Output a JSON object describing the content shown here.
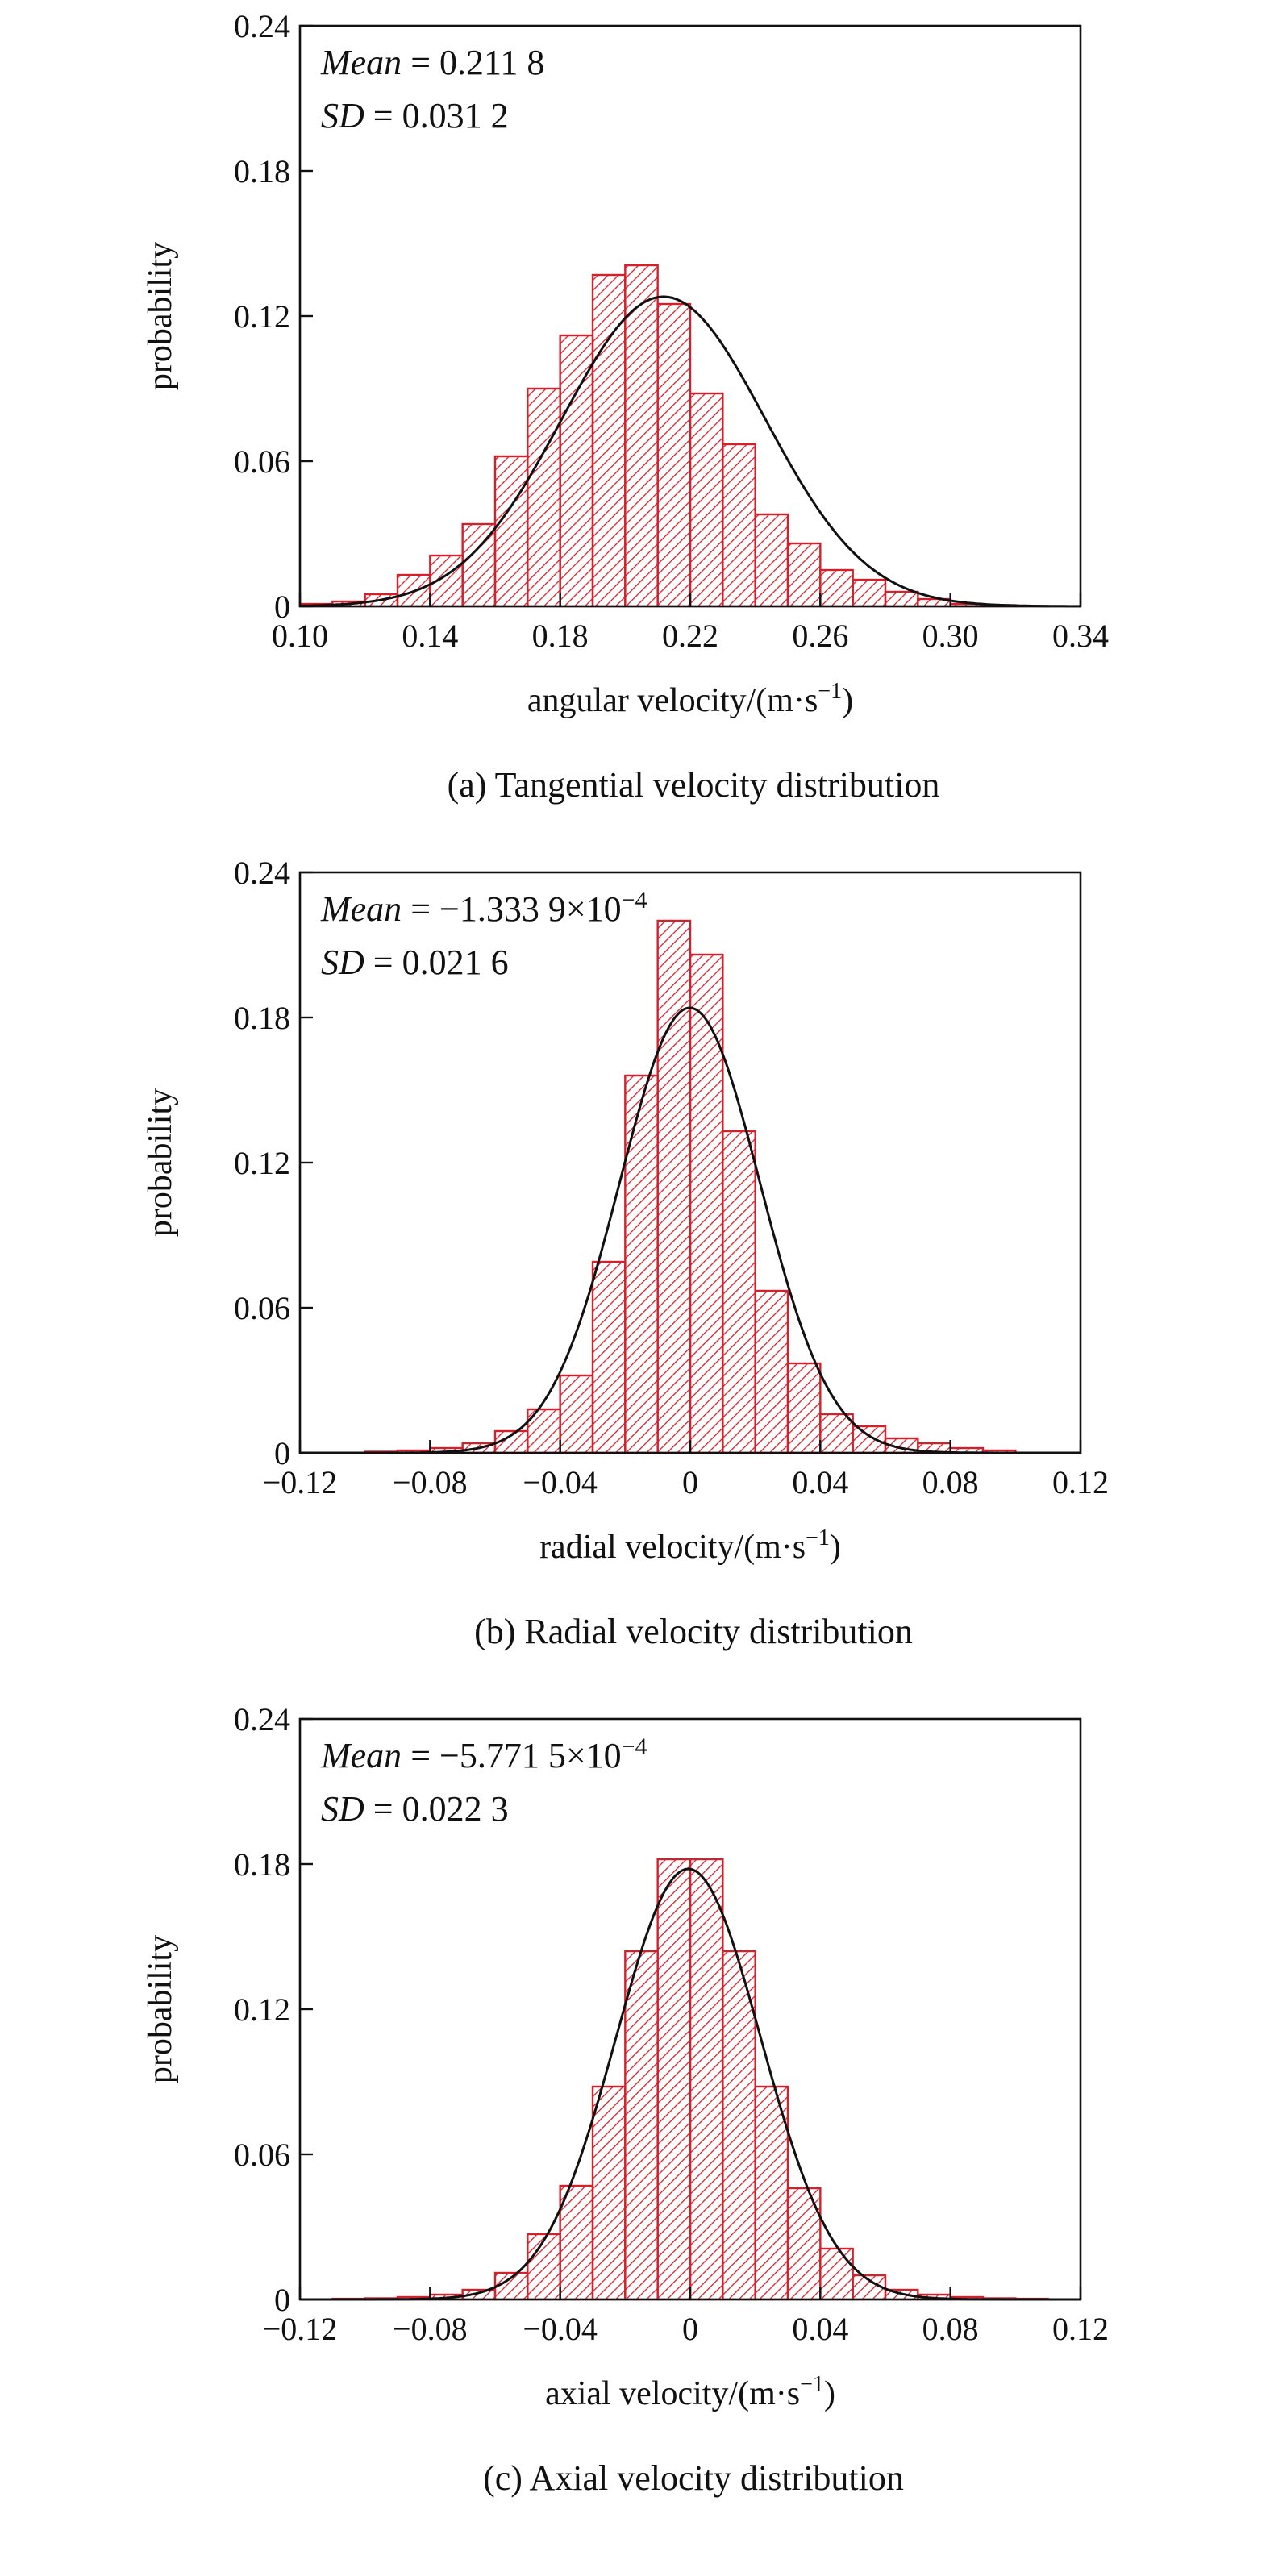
{
  "chart_data": [
    {
      "type": "bar",
      "caption": "(a) Tangential velocity distribution",
      "xlabel": "angular velocity/(m·s",
      "xlabel_sup": "−1",
      "xlabel_end": ")",
      "ylabel": "probability",
      "stat1_name": "Mean",
      "stat1_value": " = 0.211 8",
      "stat2_name": "SD",
      "stat2_value": " = 0.031 2",
      "xlim": [
        0.1,
        0.34
      ],
      "ylim": [
        0,
        0.24
      ],
      "xticks": [
        "0.10",
        "0.14",
        "0.18",
        "0.22",
        "0.26",
        "0.30",
        "0.34"
      ],
      "yticks": [
        "0",
        "0.06",
        "0.12",
        "0.18",
        "0.24"
      ],
      "bin_edges": [
        0.1,
        0.11,
        0.12,
        0.13,
        0.14,
        0.15,
        0.16,
        0.17,
        0.18,
        0.19,
        0.2,
        0.21,
        0.22,
        0.23,
        0.24,
        0.25,
        0.26,
        0.27,
        0.28,
        0.29,
        0.3,
        0.31,
        0.32,
        0.33
      ],
      "values": [
        0.001,
        0.002,
        0.005,
        0.013,
        0.021,
        0.034,
        0.062,
        0.09,
        0.112,
        0.137,
        0.141,
        0.125,
        0.088,
        0.067,
        0.038,
        0.026,
        0.015,
        0.011,
        0.006,
        0.003,
        0.001,
        0.0005,
        0.0002
      ],
      "fit": {
        "mean": 0.2118,
        "sd": 0.0312,
        "peak": 0.128
      }
    },
    {
      "type": "bar",
      "caption": "(b) Radial velocity distribution",
      "xlabel": "radial velocity/(m·s",
      "xlabel_sup": "−1",
      "xlabel_end": ")",
      "ylabel": "probability",
      "stat1_name": "Mean",
      "stat1_value": " = −1.333 9×10",
      "stat1_sup": "−4",
      "stat2_name": "SD",
      "stat2_value": " = 0.021 6",
      "xlim": [
        -0.12,
        0.12
      ],
      "ylim": [
        0,
        0.24
      ],
      "xticks": [
        "−0.12",
        "−0.08",
        "−0.04",
        "0",
        "0.04",
        "0.08",
        "0.12"
      ],
      "yticks": [
        "0",
        "0.06",
        "0.12",
        "0.18",
        "0.24"
      ],
      "bin_edges": [
        -0.1,
        -0.09,
        -0.08,
        -0.07,
        -0.06,
        -0.05,
        -0.04,
        -0.03,
        -0.02,
        -0.01,
        0.0,
        0.01,
        0.02,
        0.03,
        0.04,
        0.05,
        0.06,
        0.07,
        0.08,
        0.09,
        0.1
      ],
      "values": [
        0.0005,
        0.001,
        0.002,
        0.004,
        0.009,
        0.018,
        0.032,
        0.079,
        0.156,
        0.22,
        0.206,
        0.133,
        0.067,
        0.037,
        0.016,
        0.011,
        0.006,
        0.004,
        0.002,
        0.001
      ],
      "fit": {
        "mean": -0.00013339,
        "sd": 0.0216,
        "peak": 0.184
      }
    },
    {
      "type": "bar",
      "caption": "(c) Axial velocity distribution",
      "xlabel": "axial velocity/(m·s",
      "xlabel_sup": "−1",
      "xlabel_end": ")",
      "ylabel": "probability",
      "stat1_name": "Mean",
      "stat1_value": " = −5.771 5×10",
      "stat1_sup": "−4",
      "stat2_name": "SD",
      "stat2_value": " = 0.022 3",
      "xlim": [
        -0.12,
        0.12
      ],
      "ylim": [
        0,
        0.24
      ],
      "xticks": [
        "−0.12",
        "−0.08",
        "−0.04",
        "0",
        "0.04",
        "0.08",
        "0.12"
      ],
      "yticks": [
        "0",
        "0.06",
        "0.12",
        "0.18",
        "0.24"
      ],
      "bin_edges": [
        -0.11,
        -0.1,
        -0.09,
        -0.08,
        -0.07,
        -0.06,
        -0.05,
        -0.04,
        -0.03,
        -0.02,
        -0.01,
        0.0,
        0.01,
        0.02,
        0.03,
        0.04,
        0.05,
        0.06,
        0.07,
        0.08,
        0.09,
        0.1,
        0.11
      ],
      "values": [
        0.0003,
        0.0005,
        0.001,
        0.002,
        0.004,
        0.011,
        0.027,
        0.047,
        0.088,
        0.144,
        0.182,
        0.182,
        0.144,
        0.088,
        0.046,
        0.021,
        0.01,
        0.004,
        0.002,
        0.001,
        0.0005,
        0.0003
      ],
      "fit": {
        "mean": -0.00057715,
        "sd": 0.0223,
        "peak": 0.178
      }
    }
  ]
}
